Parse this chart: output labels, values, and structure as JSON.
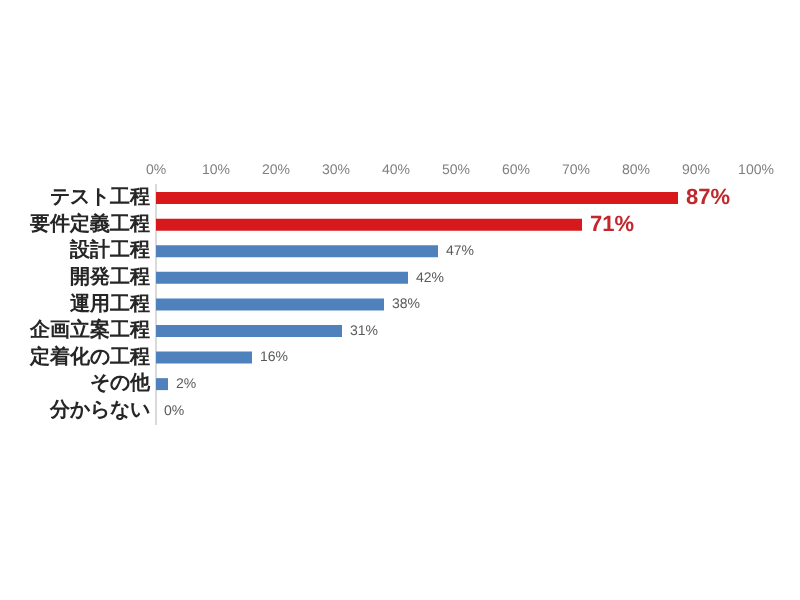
{
  "chart_data": {
    "type": "bar",
    "orientation": "horizontal",
    "categories": [
      "テスト工程",
      "要件定義工程",
      "設計工程",
      "開発工程",
      "運用工程",
      "企画立案工程",
      "定着化の工程",
      "その他",
      "分からない"
    ],
    "values": [
      87,
      71,
      47,
      42,
      38,
      31,
      16,
      2,
      0
    ],
    "colors": [
      "#d7191c",
      "#d7191c",
      "#4f81bd",
      "#4f81bd",
      "#4f81bd",
      "#4f81bd",
      "#4f81bd",
      "#4f81bd",
      "#4f81bd"
    ],
    "value_labels": [
      "87%",
      "71%",
      "47%",
      "42%",
      "38%",
      "31%",
      "16%",
      "2%",
      "0%"
    ],
    "xlim": [
      0,
      100
    ],
    "xticks": [
      {
        "value": 0,
        "label": "0%"
      },
      {
        "value": 10,
        "label": "10%"
      },
      {
        "value": 20,
        "label": "20%"
      },
      {
        "value": 30,
        "label": "30%"
      },
      {
        "value": 40,
        "label": "40%"
      },
      {
        "value": 50,
        "label": "50%"
      },
      {
        "value": 60,
        "label": "60%"
      },
      {
        "value": 70,
        "label": "70%"
      },
      {
        "value": 80,
        "label": "80%"
      },
      {
        "value": 90,
        "label": "90%"
      },
      {
        "value": 100,
        "label": "100%"
      }
    ],
    "grid": false,
    "legend": false
  }
}
